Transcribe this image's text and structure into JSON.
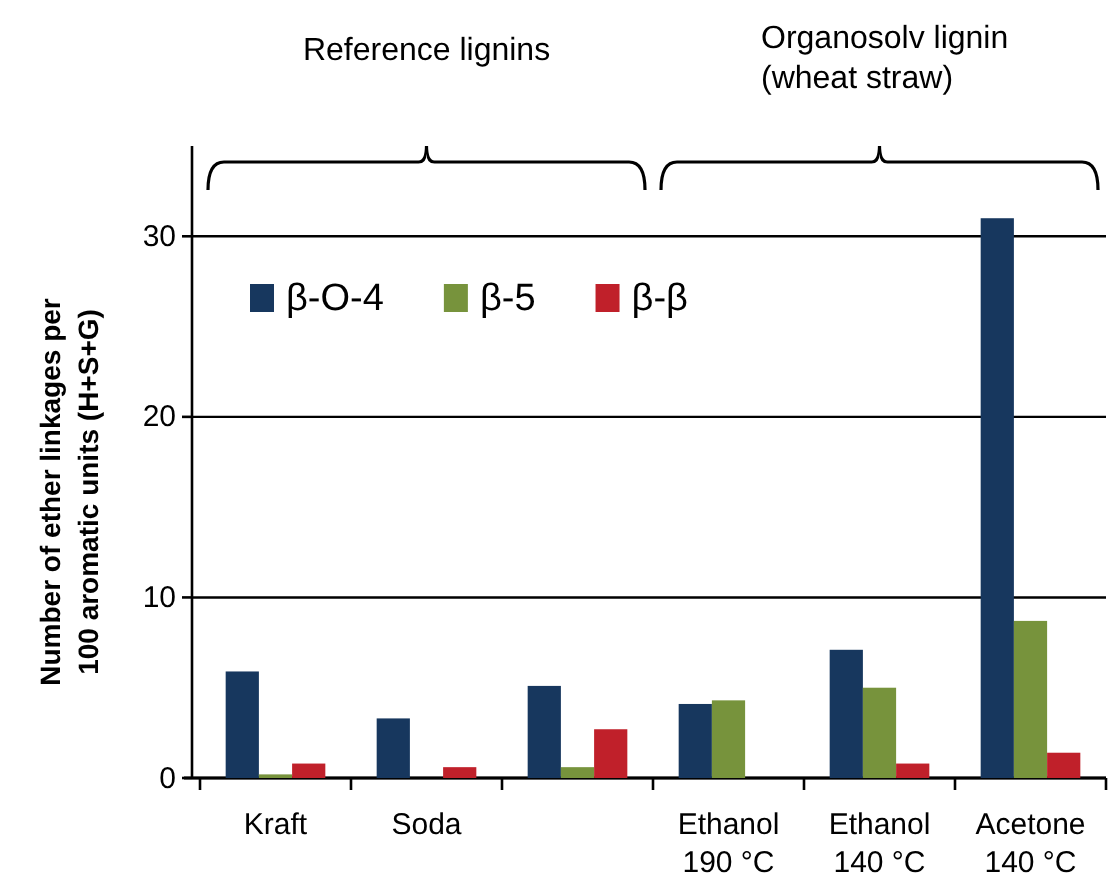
{
  "chart_data": {
    "type": "bar",
    "ylabel": "Number of ether linkages per 100 aromatic units (H+S+G)",
    "categories": [
      "Kraft",
      "Soda",
      null,
      "Ethanol 190 °C",
      "Ethanol 140 °C",
      "Acetone 140 °C"
    ],
    "series": [
      {
        "name": "β-O-4",
        "color": "#17375e",
        "values": [
          5.9,
          3.3,
          5.1,
          4.1,
          7.1,
          31.0
        ]
      },
      {
        "name": "β-5",
        "color": "#77933c",
        "values": [
          0.2,
          null,
          0.6,
          4.3,
          5.0,
          8.7
        ]
      },
      {
        "name": "β-β",
        "color": "#c0202a",
        "values": [
          0.8,
          0.6,
          2.7,
          null,
          0.8,
          1.4
        ]
      }
    ],
    "ylim": [
      0,
      35
    ],
    "yticks": [
      0,
      10,
      20,
      30
    ],
    "grid": "y",
    "legend": "top left",
    "annotations": [
      "Reference lignins",
      "Organosolv lignin (wheat straw)"
    ]
  }
}
